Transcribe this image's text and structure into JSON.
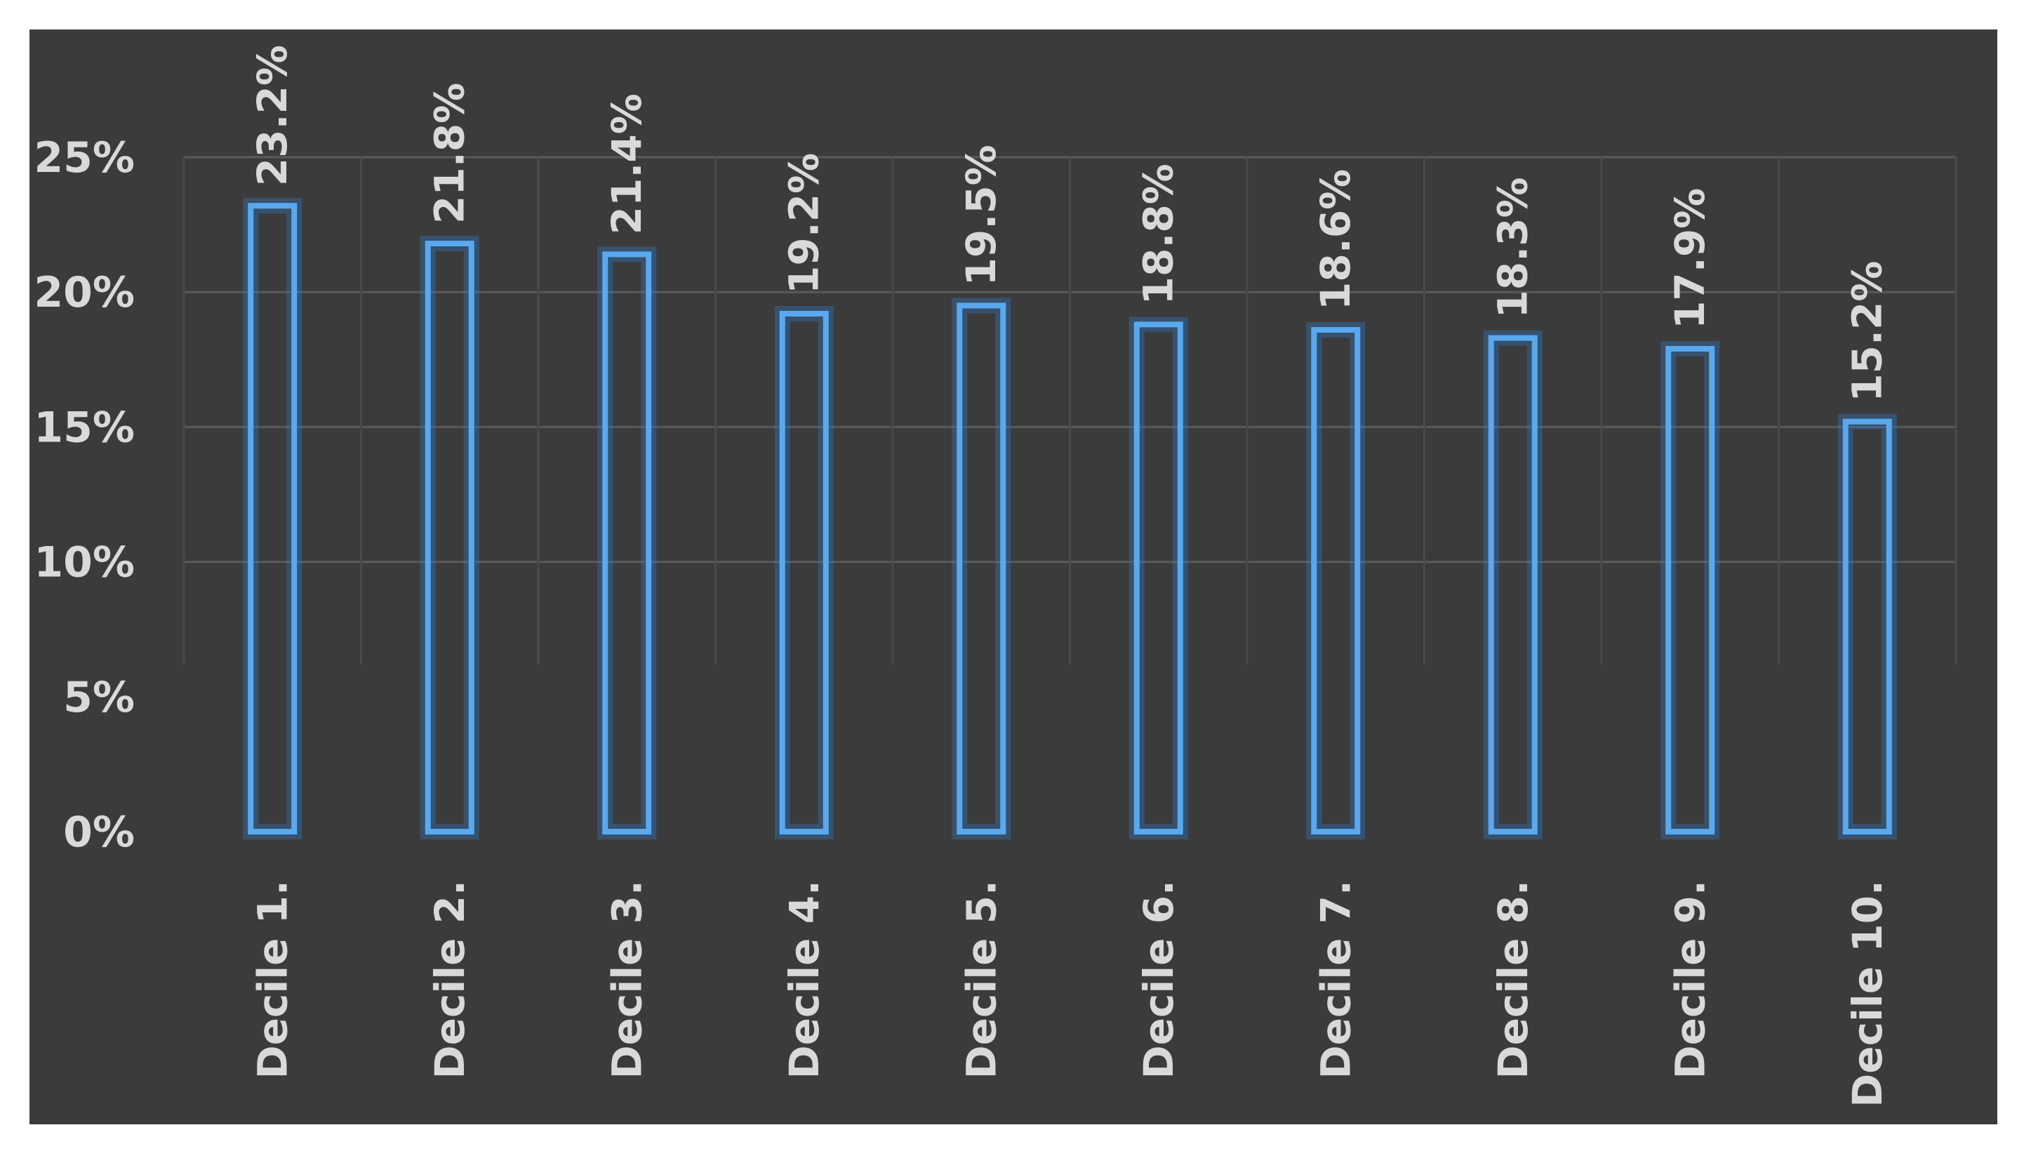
{
  "chart_data": {
    "type": "bar",
    "categories": [
      "Decile 1.",
      "Decile 2.",
      "Decile 3.",
      "Decile 4.",
      "Decile 5.",
      "Decile 6.",
      "Decile 7.",
      "Decile 8.",
      "Decile 9.",
      "Decile 10."
    ],
    "values": [
      23.2,
      21.8,
      21.4,
      19.2,
      19.5,
      18.8,
      18.6,
      18.3,
      17.9,
      15.2
    ],
    "data_labels": [
      "23.2%",
      "21.8%",
      "21.4%",
      "19.2%",
      "19.5%",
      "18.8%",
      "18.6%",
      "18.3%",
      "17.9%",
      "15.2%"
    ],
    "y_ticks": [
      0,
      5,
      10,
      15,
      20,
      25
    ],
    "y_tick_labels": [
      "0%",
      "5%",
      "10%",
      "15%",
      "20%",
      "25%"
    ],
    "ylim": [
      0,
      25
    ],
    "grid": true,
    "title": "",
    "xlabel": "",
    "ylabel": "",
    "colors": {
      "background": "#3b3b3b",
      "bar_outline": "#5aa9ee",
      "text": "#d9d9d9",
      "grid": "#5a5a5a"
    }
  }
}
